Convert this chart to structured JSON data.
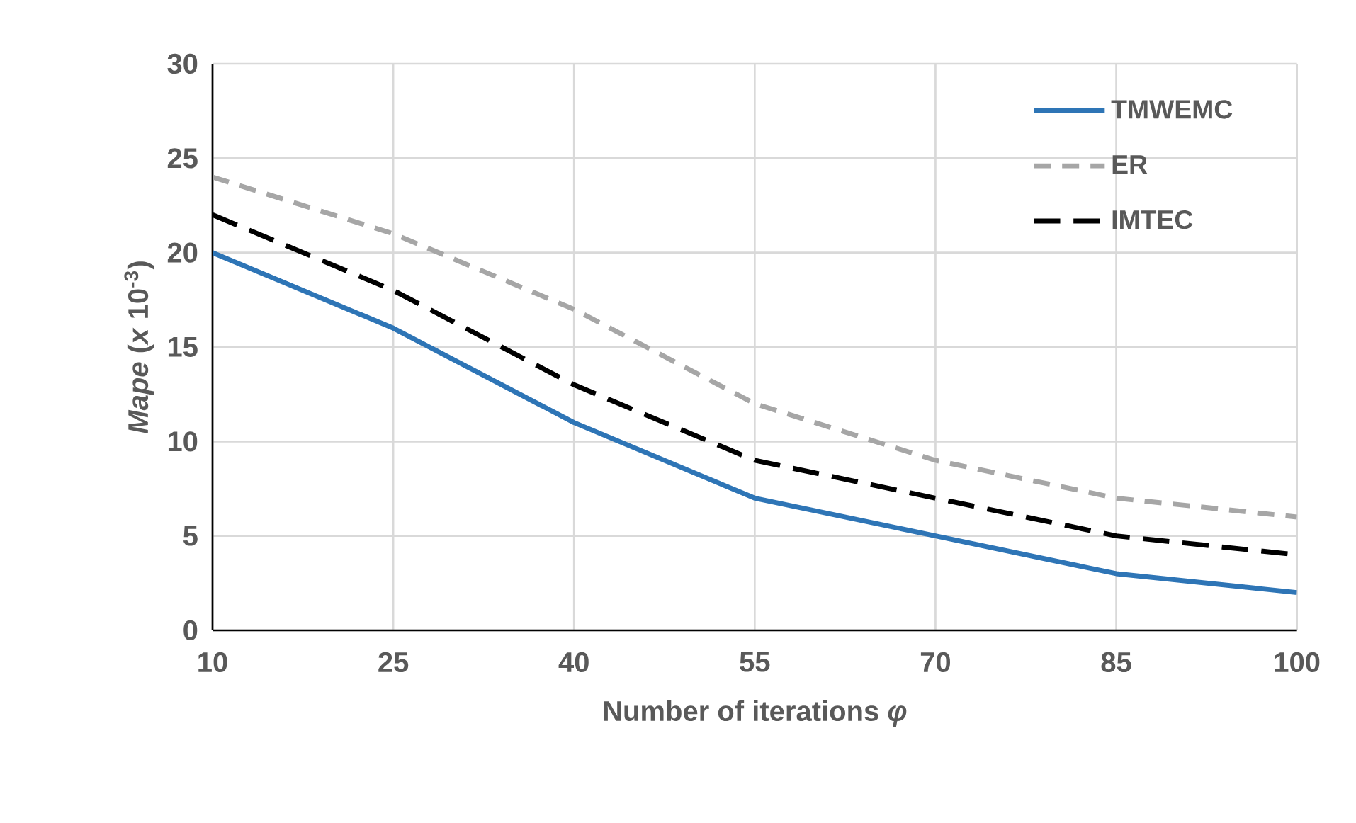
{
  "chart_data": {
    "type": "line",
    "xlabel": "Number of iterations *φ*",
    "ylabel": "*Mape* (*x* 10$^{-3}$)",
    "x": [
      10,
      25,
      40,
      55,
      70,
      85,
      100
    ],
    "xlim": [
      10,
      100
    ],
    "xticks": [
      10,
      25,
      40,
      55,
      70,
      85,
      100
    ],
    "ylim": [
      0,
      30
    ],
    "yticks": [
      0,
      5,
      10,
      15,
      20,
      25,
      30
    ],
    "grid": true,
    "legend": "top right",
    "series": [
      {
        "name": "TMWEMC",
        "color": "#2e75b6",
        "line_style": "solid",
        "values": [
          20,
          16,
          11,
          7,
          5,
          3,
          2
        ]
      },
      {
        "name": "ER",
        "color": "#a6a6a6",
        "line_style": "dashed",
        "values": [
          24,
          21,
          17,
          12,
          9,
          7,
          6
        ]
      },
      {
        "name": "IMTEC",
        "color": "#000000",
        "line_style": "dashed",
        "values": [
          22,
          18,
          13,
          9,
          7,
          5,
          4
        ]
      }
    ]
  }
}
